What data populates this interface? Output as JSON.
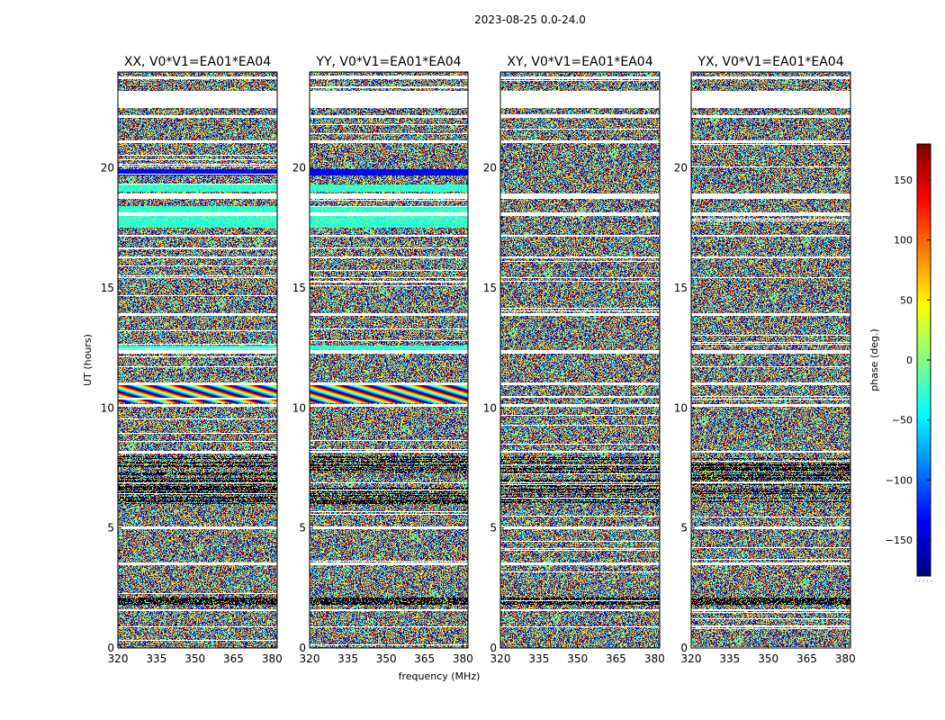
{
  "chart_data": {
    "type": "heatmap",
    "suptitle": "2023-08-25 0.0-24.0",
    "xlabel": "frequency (MHz)",
    "ylabel": "UT (hours)",
    "xlim": [
      320,
      382
    ],
    "ylim": [
      0,
      24
    ],
    "xticks": [
      320,
      335,
      350,
      365,
      380
    ],
    "yticks": [
      0,
      5,
      10,
      15,
      20
    ],
    "panels": [
      {
        "title": "XX, V0*V1=EA01*EA04",
        "polarization": "XX"
      },
      {
        "title": "YY, V0*V1=EA01*EA04",
        "polarization": "YY"
      },
      {
        "title": "XY, V0*V1=EA01*EA04",
        "polarization": "XY"
      },
      {
        "title": "YX, V0*V1=EA01*EA04",
        "polarization": "YX"
      }
    ],
    "colorbar": {
      "label": "phase (deg.)",
      "range": [
        -180,
        180
      ],
      "ticks": [
        150,
        100,
        50,
        0,
        -50,
        -100,
        -150
      ],
      "colormap": "jet"
    },
    "flagged_bands_hours": [
      [
        0.85,
        0.9
      ],
      [
        1.55,
        1.6
      ],
      [
        3.45,
        3.55
      ],
      [
        4.95,
        5.05
      ],
      [
        6.85,
        6.9
      ],
      [
        8.15,
        8.2
      ],
      [
        10.05,
        10.15
      ],
      [
        10.95,
        11.05
      ],
      [
        12.25,
        12.4
      ],
      [
        13.85,
        13.95
      ],
      [
        15.4,
        15.45
      ],
      [
        16.25,
        16.3
      ],
      [
        17.15,
        17.2
      ],
      [
        18.0,
        18.15
      ],
      [
        18.7,
        18.95
      ],
      [
        21.05,
        21.15
      ],
      [
        22.1,
        22.2
      ],
      [
        22.5,
        23.2
      ],
      [
        23.7,
        23.8
      ]
    ],
    "coherent_bands_hours": {
      "XX": [
        [
          19.7,
          19.95
        ],
        [
          19.0,
          19.3
        ],
        [
          12.4,
          12.6
        ],
        [
          10.2,
          11.0
        ],
        [
          17.5,
          18.4
        ]
      ],
      "YY": [
        [
          19.7,
          19.95
        ],
        [
          19.0,
          19.3
        ],
        [
          12.4,
          12.6
        ],
        [
          10.2,
          11.0
        ],
        [
          17.5,
          18.4
        ]
      ]
    }
  }
}
